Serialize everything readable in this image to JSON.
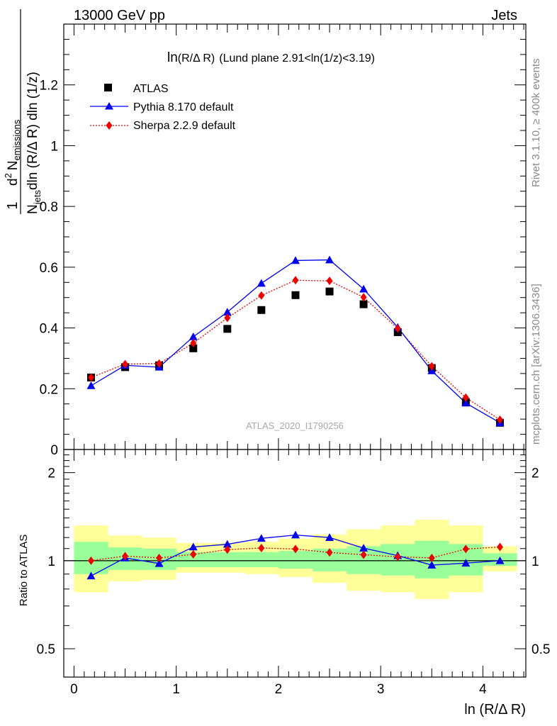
{
  "header": {
    "left": "13000 GeV pp",
    "right": "Jets"
  },
  "side_labels": {
    "rivet": "Rivet 3.1.10, ≥ 400k events",
    "mcplots": "mcplots.cern.ch [arXiv:1306.3436]"
  },
  "ylabel": {
    "one": "1",
    "njets_N": "N",
    "njets_sub": "jets",
    "njets_rest": "dln (R/Δ R) dln (1/z)",
    "top_d2": "d",
    "top_2": "2",
    "top_N": "N",
    "top_sub": "emissions"
  },
  "ratio_ylabel": "Ratio to ATLAS",
  "xlabel": "ln (R/Δ R)",
  "plot_title": {
    "main": "ln",
    "paren": "(R/Δ R)",
    "rest": "(Lund plane 2.91<ln(1/z)<3.19)"
  },
  "watermark": "ATLAS_2020_I1790256",
  "legend": [
    {
      "label": "ATLAS",
      "marker": "square",
      "color": "#000000"
    },
    {
      "label": "Pythia 8.170 default",
      "marker": "triangle",
      "color": "#0000ee"
    },
    {
      "label": "Sherpa 2.2.9 default",
      "marker": "diamond",
      "color": "#ee0000"
    }
  ],
  "axis_ticks": {
    "main_y": [
      "0",
      "0.2",
      "0.4",
      "0.6",
      "0.8",
      "1",
      "1.2"
    ],
    "ratio_y": [
      "0.5",
      "1",
      "2"
    ],
    "x": [
      "0",
      "1",
      "2",
      "3",
      "4"
    ]
  },
  "chart_data": {
    "type": "scatter",
    "x_range": [
      -0.1,
      4.42
    ],
    "main": {
      "ylim": [
        0,
        1.4
      ],
      "x": [
        0.167,
        0.5,
        0.833,
        1.167,
        1.5,
        1.833,
        2.167,
        2.5,
        2.833,
        3.167,
        3.5,
        3.833,
        4.167
      ],
      "series": [
        {
          "name": "ATLAS",
          "values": [
            0.237,
            0.271,
            0.277,
            0.333,
            0.397,
            0.459,
            0.508,
            0.52,
            0.478,
            0.386,
            0.268,
            0.156,
            0.088
          ]
        },
        {
          "name": "Pythia 8.170 default",
          "values": [
            0.21,
            0.277,
            0.271,
            0.371,
            0.452,
            0.547,
            0.622,
            0.624,
            0.528,
            0.402,
            0.259,
            0.153,
            0.088
          ],
          "errors": [
            0.003,
            0.003,
            0.003,
            0.004,
            0.004,
            0.005,
            0.007,
            0.007,
            0.005,
            0.004,
            0.003,
            0.002,
            0.002
          ]
        },
        {
          "name": "Sherpa 2.2.9 default",
          "values": [
            0.237,
            0.281,
            0.283,
            0.35,
            0.433,
            0.507,
            0.557,
            0.555,
            0.501,
            0.398,
            0.274,
            0.171,
            0.098
          ]
        }
      ]
    },
    "ratio": {
      "ylim": [
        0.4,
        2.4
      ],
      "log_scale": true,
      "reference_line": 1,
      "bin_edges": [
        0,
        0.333,
        0.667,
        1.0,
        1.333,
        1.667,
        2.0,
        2.333,
        2.667,
        3.0,
        3.333,
        3.667,
        4.0,
        4.333
      ],
      "band_yellow": [
        [
          0.78,
          1.32
        ],
        [
          0.85,
          1.22
        ],
        [
          0.86,
          1.2
        ],
        [
          0.91,
          1.15
        ],
        [
          0.91,
          1.15
        ],
        [
          0.9,
          1.16
        ],
        [
          0.88,
          1.19
        ],
        [
          0.84,
          1.23
        ],
        [
          0.79,
          1.28
        ],
        [
          0.78,
          1.32
        ],
        [
          0.74,
          1.38
        ],
        [
          0.78,
          1.32
        ],
        [
          0.92,
          1.12
        ]
      ],
      "band_green": [
        [
          0.9,
          1.16
        ],
        [
          0.93,
          1.11
        ],
        [
          0.93,
          1.1
        ],
        [
          0.95,
          1.07
        ],
        [
          0.95,
          1.07
        ],
        [
          0.95,
          1.07
        ],
        [
          0.94,
          1.08
        ],
        [
          0.92,
          1.1
        ],
        [
          0.9,
          1.12
        ],
        [
          0.89,
          1.14
        ],
        [
          0.87,
          1.17
        ],
        [
          0.89,
          1.14
        ],
        [
          0.96,
          1.06
        ]
      ],
      "series": [
        {
          "name": "Pythia 8.170 default",
          "values": [
            0.887,
            1.022,
            0.978,
            1.114,
            1.138,
            1.192,
            1.224,
            1.2,
            1.104,
            1.041,
            0.966,
            0.981,
            1.0
          ]
        },
        {
          "name": "Sherpa 2.2.9 default",
          "values": [
            1.0,
            1.037,
            1.022,
            1.051,
            1.091,
            1.105,
            1.096,
            1.067,
            1.048,
            1.031,
            1.022,
            1.096,
            1.114
          ]
        }
      ]
    }
  }
}
